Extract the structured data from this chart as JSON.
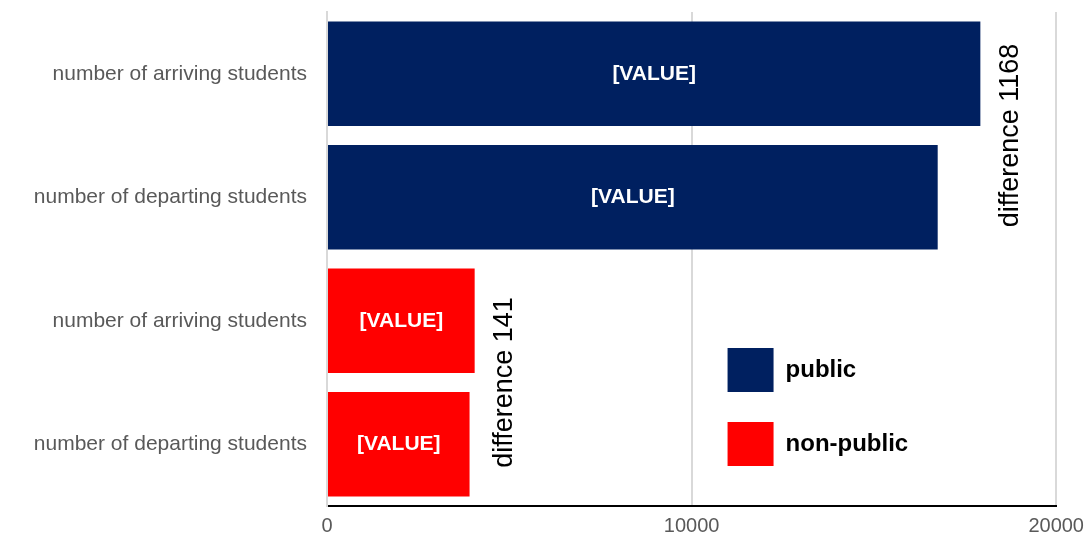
{
  "chart_data": {
    "type": "bar",
    "orientation": "horizontal",
    "categories": [
      "number of arriving students",
      "number of departing students",
      "number of arriving students",
      "number of departing students"
    ],
    "series": [
      {
        "name": "public",
        "color": "#002060",
        "values": [
          17920,
          16750,
          null,
          null
        ],
        "value_labels": [
          "[VALUE]",
          "[VALUE]",
          null,
          null
        ]
      },
      {
        "name": "non-public",
        "color": "#ff0000",
        "values": [
          null,
          null,
          4050,
          3910
        ],
        "value_labels": [
          null,
          null,
          "[VALUE]",
          "[VALUE]"
        ]
      }
    ],
    "xlim": [
      0,
      20000
    ],
    "xticks": [
      0,
      10000,
      20000
    ],
    "grid": "x",
    "legend": "bottom right",
    "annotations": [
      "difference 1168",
      "difference 141"
    ]
  }
}
